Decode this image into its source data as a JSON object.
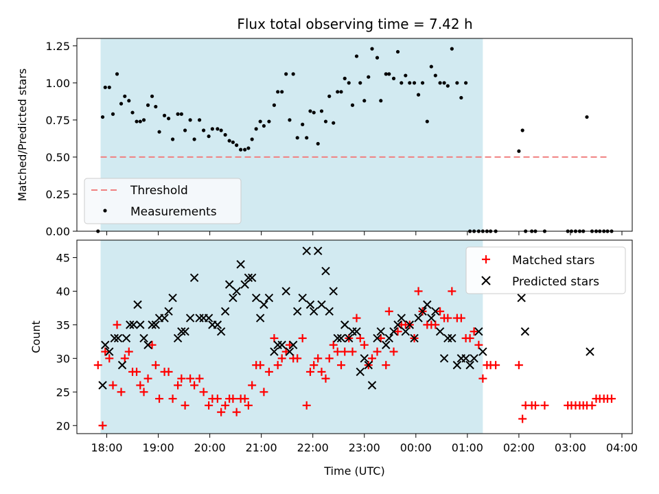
{
  "figure": {
    "title": "Flux total observing time = 7.42 h"
  },
  "chart_data": [
    {
      "type": "scatter",
      "panel": "top",
      "ylabel": "Matched/Predicted stars",
      "xlabel": "",
      "ylim": [
        0,
        1.3
      ],
      "yticks": [
        0,
        0.25,
        0.5,
        0.75,
        1.0,
        1.25
      ],
      "ytick_labels": [
        "0.00",
        "0.25",
        "0.50",
        "0.75",
        "1.00",
        "1.25"
      ],
      "xlim": [
        17.42,
        28.2
      ],
      "shaded_interval": [
        17.88,
        25.3
      ],
      "shade_color": "#add8e6",
      "threshold": {
        "name": "Threshold",
        "value": 0.5,
        "x_range": [
          17.88,
          27.7
        ],
        "color": "#f08080"
      },
      "legend": {
        "position": "lower-left",
        "entries": [
          "Threshold",
          "Measurements"
        ]
      },
      "series": [
        {
          "name": "Measurements",
          "color": "#000000",
          "x": [
            17.83,
            17.92,
            17.97,
            18.05,
            18.12,
            18.2,
            18.28,
            18.35,
            18.43,
            18.5,
            18.58,
            18.65,
            18.72,
            18.8,
            18.88,
            18.95,
            19.02,
            19.12,
            19.2,
            19.28,
            19.38,
            19.45,
            19.52,
            19.62,
            19.7,
            19.8,
            19.88,
            19.98,
            20.05,
            20.15,
            20.22,
            20.3,
            20.38,
            20.45,
            20.52,
            20.6,
            20.68,
            20.75,
            20.82,
            20.9,
            20.98,
            21.05,
            21.15,
            21.25,
            21.32,
            21.4,
            21.48,
            21.55,
            21.62,
            21.7,
            21.8,
            21.88,
            21.95,
            22.02,
            22.1,
            22.17,
            22.25,
            22.32,
            22.4,
            22.48,
            22.55,
            22.62,
            22.7,
            22.77,
            22.85,
            22.92,
            23.0,
            23.08,
            23.15,
            23.25,
            23.32,
            23.42,
            23.48,
            23.57,
            23.65,
            23.72,
            23.8,
            23.88,
            23.97,
            24.05,
            24.13,
            24.22,
            24.3,
            24.38,
            24.47,
            24.55,
            24.62,
            24.7,
            24.8,
            24.88,
            24.97,
            25.05,
            25.13,
            25.22,
            25.3,
            25.38,
            25.45,
            25.55,
            26.0,
            26.07,
            26.13,
            26.25,
            26.32,
            26.5,
            26.95,
            27.02,
            27.1,
            27.18,
            27.25,
            27.32,
            27.42,
            27.5,
            27.57,
            27.65,
            27.72,
            27.8
          ],
          "y": [
            0.0,
            0.77,
            0.97,
            0.97,
            0.79,
            1.06,
            0.86,
            0.91,
            0.88,
            0.8,
            0.74,
            0.74,
            0.75,
            0.85,
            0.91,
            0.84,
            0.67,
            0.78,
            0.76,
            0.62,
            0.79,
            0.79,
            0.68,
            0.75,
            0.62,
            0.75,
            0.68,
            0.64,
            0.69,
            0.69,
            0.68,
            0.65,
            0.61,
            0.6,
            0.58,
            0.55,
            0.55,
            0.56,
            0.62,
            0.69,
            0.74,
            0.71,
            0.74,
            0.85,
            0.94,
            0.94,
            1.06,
            0.75,
            1.06,
            0.63,
            0.72,
            0.63,
            0.81,
            0.8,
            0.59,
            0.81,
            0.74,
            0.91,
            0.73,
            0.94,
            0.94,
            1.03,
            1.0,
            0.85,
            1.18,
            1.0,
            0.88,
            1.04,
            1.23,
            1.17,
            0.88,
            1.06,
            1.06,
            1.03,
            1.21,
            1.0,
            1.05,
            1.0,
            1.0,
            0.92,
            1.0,
            0.74,
            1.11,
            1.05,
            1.0,
            1.0,
            0.98,
            1.23,
            1.0,
            0.9,
            1.0,
            0.0,
            0.0,
            0.0,
            0.0,
            0.0,
            0.0,
            0.0,
            0.54,
            0.68,
            0.0,
            0.0,
            0.0,
            0.0,
            0.0,
            0.0,
            0.0,
            0.0,
            0.0,
            0.77,
            0.0,
            0.0,
            0.0,
            0.0,
            0.0,
            0.0
          ]
        }
      ]
    },
    {
      "type": "scatter",
      "panel": "bottom",
      "ylabel": "Count",
      "xlabel": "Time (UTC)",
      "ylim": [
        18.8,
        47.6
      ],
      "yticks": [
        20,
        25,
        30,
        35,
        40,
        45
      ],
      "ytick_labels": [
        "20",
        "25",
        "30",
        "35",
        "40",
        "45"
      ],
      "xlim": [
        17.42,
        28.2
      ],
      "xticks": [
        18,
        19,
        20,
        21,
        22,
        23,
        24,
        25,
        26,
        27,
        28
      ],
      "xtick_labels": [
        "18:00",
        "19:00",
        "20:00",
        "21:00",
        "22:00",
        "23:00",
        "00:00",
        "01:00",
        "02:00",
        "03:00",
        "04:00"
      ],
      "shaded_interval": [
        17.88,
        25.3
      ],
      "shade_color": "#add8e6",
      "legend": {
        "position": "top-right",
        "entries": [
          "Matched stars",
          "Predicted stars"
        ]
      },
      "series": [
        {
          "name": "Matched stars",
          "marker": "plus",
          "color": "#ff0000",
          "x": [
            17.83,
            17.92,
            17.97,
            18.05,
            18.12,
            18.2,
            18.28,
            18.35,
            18.43,
            18.5,
            18.58,
            18.65,
            18.72,
            18.8,
            18.88,
            18.95,
            19.02,
            19.12,
            19.2,
            19.28,
            19.38,
            19.45,
            19.52,
            19.62,
            19.7,
            19.8,
            19.88,
            19.98,
            20.05,
            20.15,
            20.22,
            20.3,
            20.38,
            20.45,
            20.52,
            20.6,
            20.68,
            20.75,
            20.82,
            20.9,
            20.98,
            21.05,
            21.15,
            21.25,
            21.32,
            21.4,
            21.48,
            21.55,
            21.62,
            21.7,
            21.8,
            21.88,
            21.95,
            22.02,
            22.1,
            22.17,
            22.25,
            22.32,
            22.4,
            22.48,
            22.55,
            22.62,
            22.7,
            22.77,
            22.85,
            22.92,
            23.0,
            23.08,
            23.15,
            23.25,
            23.32,
            23.42,
            23.48,
            23.57,
            23.65,
            23.72,
            23.8,
            23.88,
            23.97,
            24.05,
            24.13,
            24.22,
            24.3,
            24.38,
            24.47,
            24.55,
            24.62,
            24.7,
            24.8,
            24.88,
            24.97,
            25.05,
            25.13,
            25.22,
            25.3,
            25.38,
            25.45,
            25.55,
            26.0,
            26.07,
            26.13,
            26.25,
            26.32,
            26.5,
            26.95,
            27.02,
            27.1,
            27.18,
            27.25,
            27.32,
            27.42,
            27.5,
            27.57,
            27.65,
            27.72,
            27.8
          ],
          "y": [
            29,
            20,
            31,
            30,
            26,
            35,
            25,
            30,
            31,
            28,
            28,
            26,
            25,
            27,
            32,
            29,
            24,
            28,
            28,
            24,
            26,
            27,
            23,
            27,
            26,
            27,
            25,
            23,
            24,
            24,
            22,
            23,
            24,
            24,
            22,
            24,
            24,
            23,
            26,
            29,
            29,
            25,
            28,
            33,
            29,
            30,
            31,
            32,
            30,
            30,
            33,
            23,
            28,
            29,
            30,
            28,
            27,
            30,
            32,
            31,
            29,
            31,
            33,
            31,
            36,
            33,
            32,
            29,
            30,
            31,
            33,
            29,
            37,
            31,
            34,
            35,
            35,
            35,
            33,
            40,
            37,
            35,
            35,
            35,
            37,
            36,
            36,
            40,
            36,
            36,
            33,
            33,
            34,
            32,
            27,
            29,
            29,
            29,
            29,
            21,
            23,
            23,
            23,
            23,
            23,
            23,
            23,
            23,
            23,
            23,
            23,
            24,
            24,
            24,
            24,
            24
          ]
        },
        {
          "name": "Predicted stars",
          "marker": "x",
          "color": "#000000",
          "x": [
            17.92,
            17.97,
            18.05,
            18.15,
            18.22,
            18.3,
            18.38,
            18.45,
            18.52,
            18.6,
            18.65,
            18.72,
            18.8,
            18.88,
            18.95,
            19.02,
            19.12,
            19.2,
            19.28,
            19.38,
            19.45,
            19.52,
            19.62,
            19.7,
            19.8,
            19.88,
            19.98,
            20.05,
            20.15,
            20.22,
            20.3,
            20.38,
            20.45,
            20.52,
            20.6,
            20.68,
            20.75,
            20.82,
            20.9,
            20.98,
            21.05,
            21.15,
            21.25,
            21.32,
            21.4,
            21.48,
            21.55,
            21.62,
            21.7,
            21.8,
            21.88,
            21.95,
            22.02,
            22.1,
            22.17,
            22.25,
            22.32,
            22.4,
            22.48,
            22.55,
            22.62,
            22.7,
            22.77,
            22.85,
            22.92,
            23.0,
            23.08,
            23.15,
            23.25,
            23.32,
            23.42,
            23.48,
            23.57,
            23.65,
            23.72,
            23.8,
            23.88,
            23.97,
            24.05,
            24.13,
            24.22,
            24.3,
            24.38,
            24.47,
            24.55,
            24.62,
            24.7,
            24.8,
            24.88,
            24.97,
            25.05,
            25.13,
            25.22,
            25.3,
            26.05,
            26.12,
            27.38
          ],
          "y": [
            26,
            32,
            31,
            33,
            33,
            29,
            33,
            35,
            35,
            38,
            35,
            33,
            32,
            35,
            35,
            36,
            36,
            37,
            39,
            33,
            34,
            34,
            36,
            42,
            36,
            36,
            36,
            35,
            35,
            34,
            37,
            41,
            39,
            40,
            44,
            41,
            42,
            42,
            39,
            36,
            38,
            39,
            31,
            32,
            32,
            40,
            31,
            32,
            37,
            39,
            46,
            38,
            37,
            46,
            38,
            43,
            37,
            40,
            33,
            33,
            35,
            33,
            34,
            34,
            28,
            30,
            29,
            26,
            33,
            34,
            32,
            33,
            34,
            35,
            36,
            34,
            35,
            33,
            36,
            37,
            38,
            36,
            37,
            34,
            30,
            33,
            33,
            29,
            30,
            30,
            29,
            30,
            34,
            31,
            39,
            34,
            31
          ]
        }
      ]
    }
  ]
}
